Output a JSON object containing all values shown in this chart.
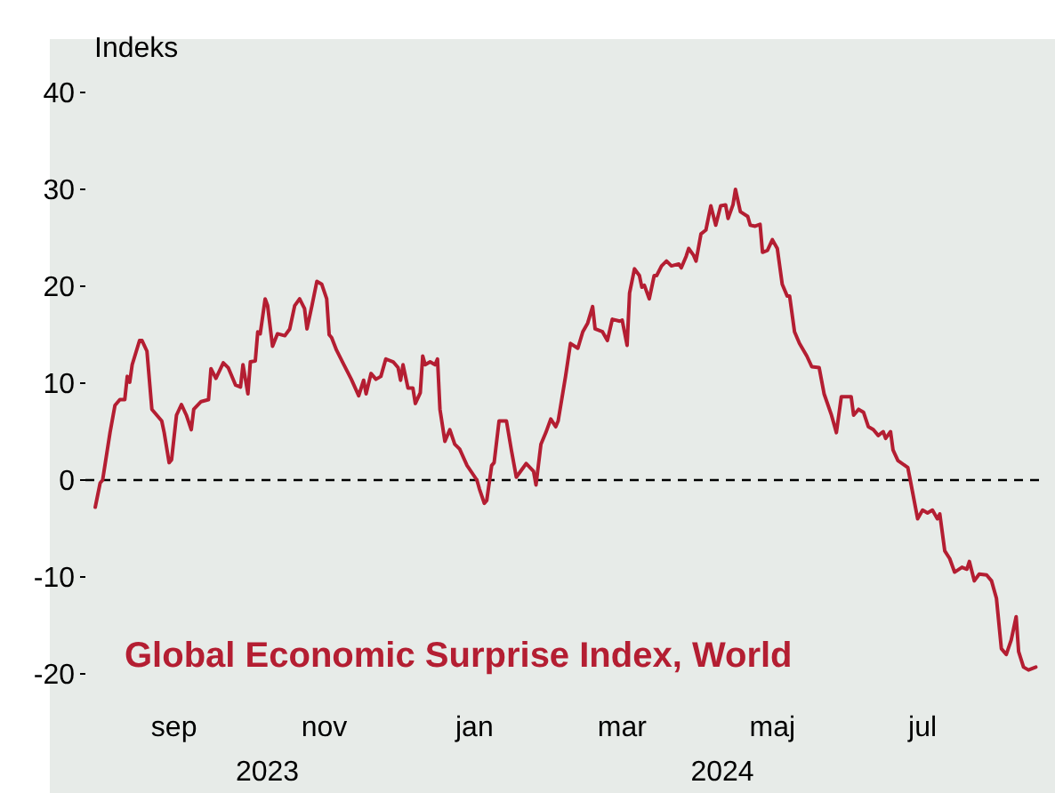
{
  "chart_data": {
    "type": "line",
    "ylabel": "Indeks",
    "legend": "bottom left",
    "line_style": "solid",
    "marker": "none",
    "grid": false,
    "xlim": [
      "2023-08-10",
      "2024-09-01"
    ],
    "ylim": [
      -20,
      40
    ],
    "annotations": [
      "2023",
      "2024"
    ],
    "yticks": [
      -20,
      -10,
      0,
      10,
      20,
      30,
      40
    ],
    "xticks": [
      {
        "value": "2023-09-15",
        "label": "sep"
      },
      {
        "value": "2023-11-15",
        "label": "nov"
      },
      {
        "value": "2024-01-15",
        "label": "jan"
      },
      {
        "value": "2024-03-15",
        "label": "mar"
      },
      {
        "value": "2024-05-15",
        "label": "maj"
      },
      {
        "value": "2024-07-15",
        "label": "jul"
      }
    ],
    "ref_lines": [
      {
        "axis": "y",
        "value": 0,
        "color": "#000000",
        "line_style": "dashed"
      }
    ],
    "series": [
      {
        "name": "Global Economic Surprise Index, World",
        "color": "#b41e32",
        "x": [
          "2023-08-14",
          "2023-08-16",
          "2023-08-17",
          "2023-08-20",
          "2023-08-22",
          "2023-08-24",
          "2023-08-26",
          "2023-08-27",
          "2023-08-28",
          "2023-08-29",
          "2023-09-01",
          "2023-09-02",
          "2023-09-04",
          "2023-09-06",
          "2023-09-08",
          "2023-09-10",
          "2023-09-11",
          "2023-09-13",
          "2023-09-14",
          "2023-09-16",
          "2023-09-18",
          "2023-09-20",
          "2023-09-22",
          "2023-09-23",
          "2023-09-26",
          "2023-09-29",
          "2023-09-30",
          "2023-10-02",
          "2023-10-05",
          "2023-10-07",
          "2023-10-10",
          "2023-10-12",
          "2023-10-13",
          "2023-10-15",
          "2023-10-16",
          "2023-10-18",
          "2023-10-19",
          "2023-10-20",
          "2023-10-22",
          "2023-10-23",
          "2023-10-25",
          "2023-10-27",
          "2023-10-30",
          "2023-11-01",
          "2023-11-03",
          "2023-11-05",
          "2023-11-07",
          "2023-11-08",
          "2023-11-10",
          "2023-11-12",
          "2023-11-14",
          "2023-11-16",
          "2023-11-17",
          "2023-11-18",
          "2023-11-20",
          "2023-11-23",
          "2023-11-26",
          "2023-11-29",
          "2023-12-01",
          "2023-12-02",
          "2023-12-04",
          "2023-12-06",
          "2023-12-08",
          "2023-12-10",
          "2023-12-13",
          "2023-12-15",
          "2023-12-16",
          "2023-12-17",
          "2023-12-19",
          "2023-12-21",
          "2023-12-22",
          "2023-12-24",
          "2023-12-25",
          "2023-12-26",
          "2023-12-28",
          "2023-12-30",
          "2023-12-31",
          "2024-01-01",
          "2024-01-03",
          "2024-01-05",
          "2024-01-07",
          "2024-01-09",
          "2024-01-12",
          "2024-01-16",
          "2024-01-17",
          "2024-01-19",
          "2024-01-20",
          "2024-01-22",
          "2024-01-23",
          "2024-01-25",
          "2024-01-28",
          "2024-01-30",
          "2024-02-01",
          "2024-02-05",
          "2024-02-08",
          "2024-02-09",
          "2024-02-11",
          "2024-02-13",
          "2024-02-15",
          "2024-02-17",
          "2024-02-18",
          "2024-02-21",
          "2024-02-23",
          "2024-02-26",
          "2024-02-28",
          "2024-03-01",
          "2024-03-03",
          "2024-03-04",
          "2024-03-07",
          "2024-03-09",
          "2024-03-11",
          "2024-03-14",
          "2024-03-15",
          "2024-03-17",
          "2024-03-18",
          "2024-03-20",
          "2024-03-22",
          "2024-03-23",
          "2024-03-24",
          "2024-03-26",
          "2024-03-28",
          "2024-03-29",
          "2024-03-31",
          "2024-04-02",
          "2024-04-04",
          "2024-04-07",
          "2024-04-08",
          "2024-04-10",
          "2024-04-11",
          "2024-04-13",
          "2024-04-14",
          "2024-04-16",
          "2024-04-18",
          "2024-04-20",
          "2024-04-22",
          "2024-04-24",
          "2024-04-26",
          "2024-04-27",
          "2024-04-29",
          "2024-04-30",
          "2024-05-02",
          "2024-05-05",
          "2024-05-06",
          "2024-05-08",
          "2024-05-10",
          "2024-05-11",
          "2024-05-13",
          "2024-05-15",
          "2024-05-17",
          "2024-05-19",
          "2024-05-21",
          "2024-05-22",
          "2024-05-24",
          "2024-05-26",
          "2024-05-29",
          "2024-05-31",
          "2024-06-03",
          "2024-06-05",
          "2024-06-08",
          "2024-06-10",
          "2024-06-12",
          "2024-06-16",
          "2024-06-17",
          "2024-06-19",
          "2024-06-21",
          "2024-06-23",
          "2024-06-25",
          "2024-06-27",
          "2024-06-29",
          "2024-06-30",
          "2024-07-02",
          "2024-07-03",
          "2024-07-05",
          "2024-07-09",
          "2024-07-10",
          "2024-07-13",
          "2024-07-15",
          "2024-07-17",
          "2024-07-19",
          "2024-07-21",
          "2024-07-22",
          "2024-07-24",
          "2024-07-26",
          "2024-07-28",
          "2024-07-31",
          "2024-08-02",
          "2024-08-03",
          "2024-08-05",
          "2024-08-07",
          "2024-08-10",
          "2024-08-12",
          "2024-08-14",
          "2024-08-16",
          "2024-08-18",
          "2024-08-20",
          "2024-08-22",
          "2024-08-23",
          "2024-08-25",
          "2024-08-27",
          "2024-08-30"
        ],
        "values": [
          -2.8,
          -0.3,
          0,
          4.9,
          7.7,
          8.3,
          8.3,
          10.7,
          10.1,
          11.9,
          14.4,
          14.4,
          13.3,
          7.3,
          6.7,
          6.1,
          4.9,
          1.8,
          2.1,
          6.7,
          7.8,
          6.7,
          5.2,
          7.3,
          8.1,
          8.3,
          11.5,
          10.5,
          12.1,
          11.6,
          9.8,
          9.6,
          11.9,
          8.9,
          12.2,
          12.3,
          15.3,
          15.1,
          18.7,
          18,
          13.8,
          15.1,
          14.9,
          15.6,
          18,
          18.7,
          17.7,
          15.6,
          18,
          20.5,
          20.2,
          18.7,
          15,
          14.7,
          13.4,
          11.9,
          10.4,
          8.7,
          10.3,
          8.9,
          11,
          10.4,
          10.7,
          12.5,
          12.2,
          11.6,
          10.3,
          11.9,
          9.5,
          9.5,
          7.9,
          9,
          12.8,
          11.9,
          12.2,
          11.9,
          12.5,
          7.3,
          4,
          5.2,
          3.7,
          3.2,
          1.5,
          0,
          -0.9,
          -2.4,
          -2.1,
          1.5,
          1.8,
          6.1,
          6.1,
          3.1,
          0.3,
          1.7,
          0.9,
          -0.5,
          3.7,
          4.9,
          6.3,
          5.5,
          6.1,
          10.7,
          14.1,
          13.6,
          15.3,
          16.2,
          17.9,
          15.6,
          15.3,
          14.4,
          16.6,
          16.4,
          16.5,
          13.9,
          19.3,
          21.8,
          21.1,
          19.9,
          20.1,
          18.7,
          21.1,
          21.1,
          22.1,
          22.6,
          22.1,
          22.3,
          21.9,
          23.1,
          23.9,
          23.2,
          22.6,
          25.4,
          25.8,
          28.3,
          26.3,
          28.3,
          28.4,
          27,
          28.4,
          30,
          27.7,
          27.2,
          26.3,
          26.2,
          26.4,
          23.5,
          23.7,
          24.8,
          23.9,
          20.2,
          19,
          19,
          15.3,
          14.1,
          12.8,
          11.7,
          11.6,
          8.9,
          6.7,
          4.9,
          8.6,
          8.6,
          6.7,
          7.3,
          7,
          5.5,
          5.2,
          4.6,
          5,
          4.3,
          5,
          3.1,
          2,
          1.3,
          0,
          -4,
          -3.1,
          -3.4,
          -3.1,
          -4,
          -3.5,
          -7.3,
          -8.1,
          -9.5,
          -9,
          -9.2,
          -8.4,
          -10.4,
          -9.7,
          -9.8,
          -10.4,
          -12.2,
          -17.4,
          -18,
          -16.5,
          -14.1,
          -17.7,
          -19.3,
          -19.6,
          -19.3
        ]
      }
    ]
  }
}
